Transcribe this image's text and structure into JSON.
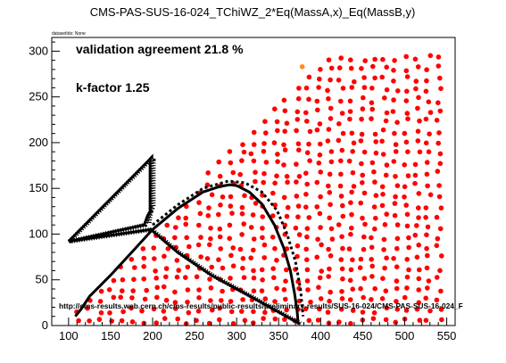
{
  "chart_data": {
    "type": "scatter",
    "title": "CMS-PAS-SUS-16-024_TChiWZ_2*Eq(MassA,x)_Eq(MassB,y)",
    "subtitle": "datasetIds: None",
    "xlabel": "",
    "ylabel": "",
    "xlim": [
      80,
      560
    ],
    "ylim": [
      0,
      315
    ],
    "x_ticks": [
      "100",
      "150",
      "200",
      "250",
      "300",
      "350",
      "400",
      "450",
      "500",
      "550"
    ],
    "y_ticks": [
      "0",
      "50",
      "100",
      "150",
      "200",
      "250",
      "300"
    ],
    "annotations": {
      "agreement": "validation agreement 21.8 %",
      "kfactor": "k-factor 1.25",
      "url": "http://cms-results.web.cern.ch/cms-results/public-results/preliminary-results/SUS-16-024/CMS-PAS-SUS-16-024_F"
    },
    "colors": {
      "excluded": "#ff0000",
      "allowed": "#ff8c1a",
      "contour": "#000000"
    },
    "highlight_point": {
      "x": 378,
      "y": 283
    },
    "official_contour": {
      "x": [
        100,
        197,
        197,
        194,
        190,
        100,
        198,
        230,
        270,
        320,
        375
      ],
      "y": [
        92,
        182,
        125,
        120,
        110,
        92,
        105,
        80,
        55,
        30,
        2
      ]
    },
    "official_contour_shifted": {
      "x": [
        200,
        201,
        201,
        198,
        196
      ],
      "y": [
        180,
        180,
        130,
        125,
        112
      ]
    },
    "validation_contour": {
      "x": [
        108,
        115,
        125,
        150,
        175,
        200,
        230,
        260,
        280,
        292,
        300,
        315,
        330,
        345,
        356,
        364,
        369,
        372,
        373
      ],
      "y": [
        10,
        18,
        32,
        55,
        80,
        105,
        128,
        146,
        152,
        154,
        153,
        146,
        133,
        110,
        85,
        60,
        35,
        15,
        5
      ]
    },
    "expected_contour": {
      "x": [
        200,
        230,
        260,
        290,
        310,
        330,
        348,
        360,
        370,
        376,
        379
      ],
      "y": [
        110,
        132,
        150,
        158,
        156,
        146,
        126,
        100,
        70,
        40,
        10
      ]
    }
  }
}
